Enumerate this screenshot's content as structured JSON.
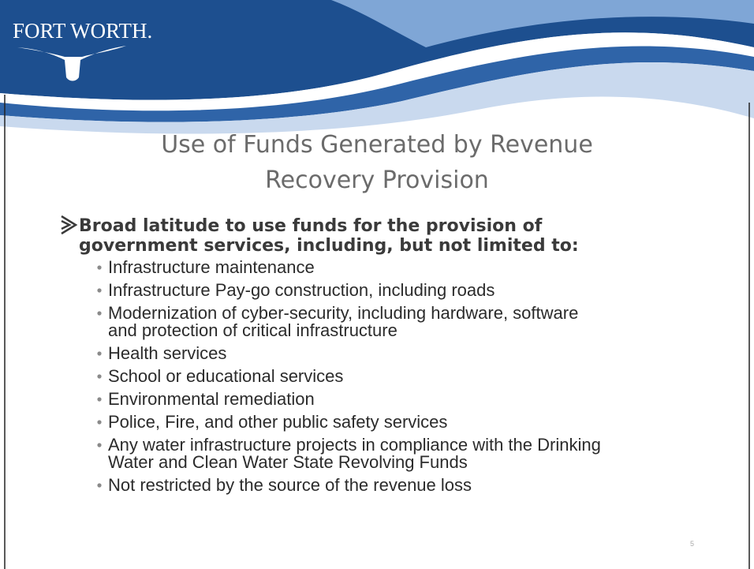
{
  "header": {
    "logo": "FORT WORTH."
  },
  "title": {
    "lines": [
      "Use of Funds Generated by Revenue",
      "Recovery Provision"
    ]
  },
  "main_bullet": {
    "lines": [
      "Broad latitude to use funds for the provision of",
      "government services, including, but not limited to:"
    ]
  },
  "sub_bullets": [
    {
      "lines": [
        "Infrastructure maintenance"
      ]
    },
    {
      "lines": [
        "Infrastructure Pay-go construction, including roads"
      ]
    },
    {
      "lines": [
        "Modernization of cyber-security, including hardware, software",
        "and protection of critical infrastructure"
      ]
    },
    {
      "lines": [
        "Health services"
      ]
    },
    {
      "lines": [
        "School or educational services"
      ]
    },
    {
      "lines": [
        "Environmental remediation"
      ]
    },
    {
      "lines": [
        "Police, Fire, and other public safety services"
      ]
    },
    {
      "lines": [
        "Any water infrastructure projects in compliance with the Drinking",
        "Water and Clean Water State Revolving Funds"
      ]
    },
    {
      "lines": [
        "Not restricted by the source of the revenue loss"
      ]
    }
  ],
  "page_number": "5"
}
